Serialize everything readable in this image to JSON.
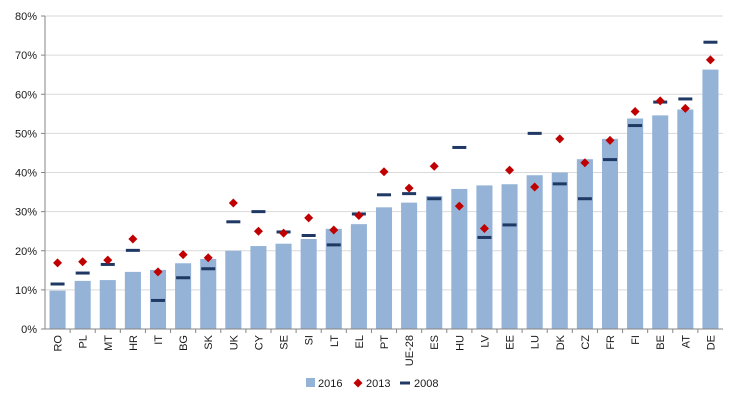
{
  "chart_data": {
    "type": "bar",
    "categories": [
      "RO",
      "PL",
      "MT",
      "HR",
      "IT",
      "BG",
      "SK",
      "UK",
      "CY",
      "SE",
      "SI",
      "LT",
      "EL",
      "PT",
      "UE-28",
      "ES",
      "HU",
      "LV",
      "EE",
      "LU",
      "DK",
      "CZ",
      "FR",
      "FI",
      "BE",
      "AT",
      "DE"
    ],
    "series": [
      {
        "name": "2016",
        "type": "bar",
        "color": "#95b3d7",
        "values": [
          9.8,
          12.3,
          12.5,
          14.6,
          15.1,
          16.8,
          17.9,
          20.0,
          21.2,
          21.8,
          23.0,
          25.6,
          26.8,
          31.1,
          32.3,
          34.0,
          35.8,
          36.7,
          37.0,
          39.3,
          40.0,
          43.4,
          48.6,
          53.8,
          54.6,
          56.1,
          66.3
        ]
      },
      {
        "name": "2013",
        "type": "marker-diamond",
        "color": "#c00000",
        "values": [
          16.9,
          17.2,
          17.6,
          23.0,
          14.6,
          19.0,
          18.2,
          32.2,
          25.0,
          24.5,
          28.4,
          25.3,
          29.0,
          40.2,
          36.0,
          41.6,
          31.4,
          25.7,
          40.6,
          36.3,
          48.6,
          42.5,
          48.2,
          55.6,
          58.3,
          56.4,
          68.8
        ]
      },
      {
        "name": "2008",
        "type": "marker-dash",
        "color": "#1f3864",
        "values": [
          11.5,
          14.3,
          16.5,
          20.1,
          7.3,
          13.1,
          15.4,
          27.4,
          30.0,
          24.8,
          23.9,
          21.5,
          29.4,
          34.3,
          34.6,
          33.3,
          46.4,
          23.4,
          26.6,
          50.0,
          37.1,
          33.3,
          43.3,
          52.0,
          58.0,
          58.8,
          73.3
        ]
      }
    ],
    "y_ticks": [
      "0%",
      "10%",
      "20%",
      "30%",
      "40%",
      "50%",
      "60%",
      "70%",
      "80%"
    ],
    "ylim": [
      0,
      80
    ],
    "grid": true,
    "legend_position": "bottom",
    "legend": [
      "2016",
      "2013",
      "2008"
    ],
    "title": "",
    "xlabel": "",
    "ylabel": ""
  }
}
